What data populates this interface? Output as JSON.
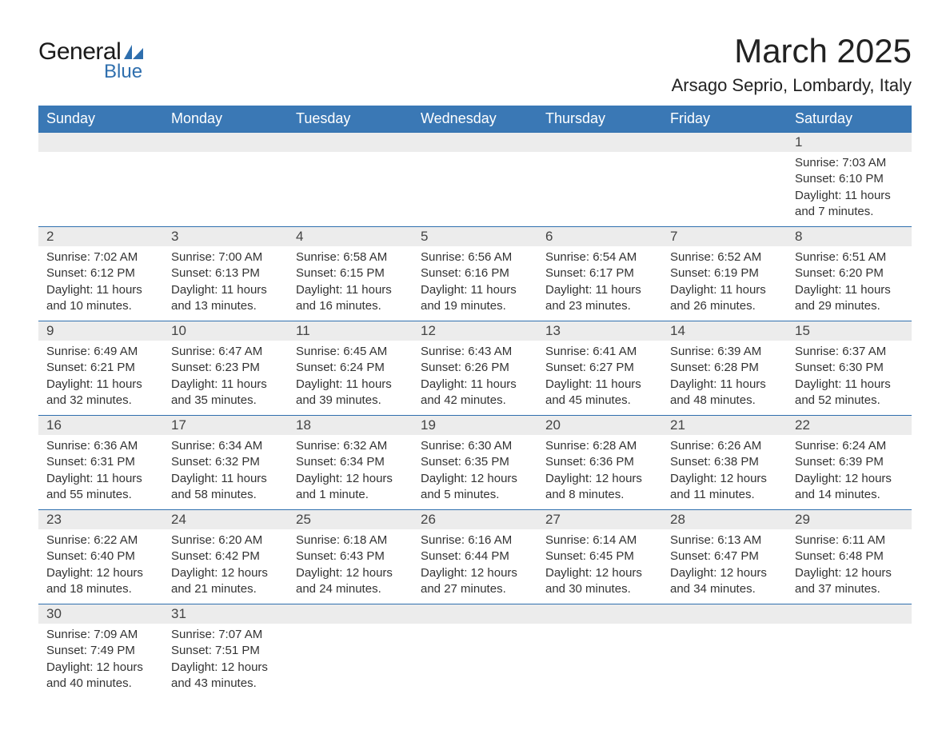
{
  "logo": {
    "text1": "General",
    "text2": "Blue",
    "flag_color": "#2f6fae"
  },
  "title": "March 2025",
  "location": "Arsago Seprio, Lombardy, Italy",
  "colors": {
    "header_bg": "#3a78b5",
    "header_fg": "#ffffff",
    "row_border": "#2f6fae",
    "daynum_bg": "#ececec",
    "text": "#333333"
  },
  "weekdays": [
    "Sunday",
    "Monday",
    "Tuesday",
    "Wednesday",
    "Thursday",
    "Friday",
    "Saturday"
  ],
  "weeks": [
    [
      null,
      null,
      null,
      null,
      null,
      null,
      {
        "d": "1",
        "sr": "Sunrise: 7:03 AM",
        "ss": "Sunset: 6:10 PM",
        "dl1": "Daylight: 11 hours",
        "dl2": "and 7 minutes."
      }
    ],
    [
      {
        "d": "2",
        "sr": "Sunrise: 7:02 AM",
        "ss": "Sunset: 6:12 PM",
        "dl1": "Daylight: 11 hours",
        "dl2": "and 10 minutes."
      },
      {
        "d": "3",
        "sr": "Sunrise: 7:00 AM",
        "ss": "Sunset: 6:13 PM",
        "dl1": "Daylight: 11 hours",
        "dl2": "and 13 minutes."
      },
      {
        "d": "4",
        "sr": "Sunrise: 6:58 AM",
        "ss": "Sunset: 6:15 PM",
        "dl1": "Daylight: 11 hours",
        "dl2": "and 16 minutes."
      },
      {
        "d": "5",
        "sr": "Sunrise: 6:56 AM",
        "ss": "Sunset: 6:16 PM",
        "dl1": "Daylight: 11 hours",
        "dl2": "and 19 minutes."
      },
      {
        "d": "6",
        "sr": "Sunrise: 6:54 AM",
        "ss": "Sunset: 6:17 PM",
        "dl1": "Daylight: 11 hours",
        "dl2": "and 23 minutes."
      },
      {
        "d": "7",
        "sr": "Sunrise: 6:52 AM",
        "ss": "Sunset: 6:19 PM",
        "dl1": "Daylight: 11 hours",
        "dl2": "and 26 minutes."
      },
      {
        "d": "8",
        "sr": "Sunrise: 6:51 AM",
        "ss": "Sunset: 6:20 PM",
        "dl1": "Daylight: 11 hours",
        "dl2": "and 29 minutes."
      }
    ],
    [
      {
        "d": "9",
        "sr": "Sunrise: 6:49 AM",
        "ss": "Sunset: 6:21 PM",
        "dl1": "Daylight: 11 hours",
        "dl2": "and 32 minutes."
      },
      {
        "d": "10",
        "sr": "Sunrise: 6:47 AM",
        "ss": "Sunset: 6:23 PM",
        "dl1": "Daylight: 11 hours",
        "dl2": "and 35 minutes."
      },
      {
        "d": "11",
        "sr": "Sunrise: 6:45 AM",
        "ss": "Sunset: 6:24 PM",
        "dl1": "Daylight: 11 hours",
        "dl2": "and 39 minutes."
      },
      {
        "d": "12",
        "sr": "Sunrise: 6:43 AM",
        "ss": "Sunset: 6:26 PM",
        "dl1": "Daylight: 11 hours",
        "dl2": "and 42 minutes."
      },
      {
        "d": "13",
        "sr": "Sunrise: 6:41 AM",
        "ss": "Sunset: 6:27 PM",
        "dl1": "Daylight: 11 hours",
        "dl2": "and 45 minutes."
      },
      {
        "d": "14",
        "sr": "Sunrise: 6:39 AM",
        "ss": "Sunset: 6:28 PM",
        "dl1": "Daylight: 11 hours",
        "dl2": "and 48 minutes."
      },
      {
        "d": "15",
        "sr": "Sunrise: 6:37 AM",
        "ss": "Sunset: 6:30 PM",
        "dl1": "Daylight: 11 hours",
        "dl2": "and 52 minutes."
      }
    ],
    [
      {
        "d": "16",
        "sr": "Sunrise: 6:36 AM",
        "ss": "Sunset: 6:31 PM",
        "dl1": "Daylight: 11 hours",
        "dl2": "and 55 minutes."
      },
      {
        "d": "17",
        "sr": "Sunrise: 6:34 AM",
        "ss": "Sunset: 6:32 PM",
        "dl1": "Daylight: 11 hours",
        "dl2": "and 58 minutes."
      },
      {
        "d": "18",
        "sr": "Sunrise: 6:32 AM",
        "ss": "Sunset: 6:34 PM",
        "dl1": "Daylight: 12 hours",
        "dl2": "and 1 minute."
      },
      {
        "d": "19",
        "sr": "Sunrise: 6:30 AM",
        "ss": "Sunset: 6:35 PM",
        "dl1": "Daylight: 12 hours",
        "dl2": "and 5 minutes."
      },
      {
        "d": "20",
        "sr": "Sunrise: 6:28 AM",
        "ss": "Sunset: 6:36 PM",
        "dl1": "Daylight: 12 hours",
        "dl2": "and 8 minutes."
      },
      {
        "d": "21",
        "sr": "Sunrise: 6:26 AM",
        "ss": "Sunset: 6:38 PM",
        "dl1": "Daylight: 12 hours",
        "dl2": "and 11 minutes."
      },
      {
        "d": "22",
        "sr": "Sunrise: 6:24 AM",
        "ss": "Sunset: 6:39 PM",
        "dl1": "Daylight: 12 hours",
        "dl2": "and 14 minutes."
      }
    ],
    [
      {
        "d": "23",
        "sr": "Sunrise: 6:22 AM",
        "ss": "Sunset: 6:40 PM",
        "dl1": "Daylight: 12 hours",
        "dl2": "and 18 minutes."
      },
      {
        "d": "24",
        "sr": "Sunrise: 6:20 AM",
        "ss": "Sunset: 6:42 PM",
        "dl1": "Daylight: 12 hours",
        "dl2": "and 21 minutes."
      },
      {
        "d": "25",
        "sr": "Sunrise: 6:18 AM",
        "ss": "Sunset: 6:43 PM",
        "dl1": "Daylight: 12 hours",
        "dl2": "and 24 minutes."
      },
      {
        "d": "26",
        "sr": "Sunrise: 6:16 AM",
        "ss": "Sunset: 6:44 PM",
        "dl1": "Daylight: 12 hours",
        "dl2": "and 27 minutes."
      },
      {
        "d": "27",
        "sr": "Sunrise: 6:14 AM",
        "ss": "Sunset: 6:45 PM",
        "dl1": "Daylight: 12 hours",
        "dl2": "and 30 minutes."
      },
      {
        "d": "28",
        "sr": "Sunrise: 6:13 AM",
        "ss": "Sunset: 6:47 PM",
        "dl1": "Daylight: 12 hours",
        "dl2": "and 34 minutes."
      },
      {
        "d": "29",
        "sr": "Sunrise: 6:11 AM",
        "ss": "Sunset: 6:48 PM",
        "dl1": "Daylight: 12 hours",
        "dl2": "and 37 minutes."
      }
    ],
    [
      {
        "d": "30",
        "sr": "Sunrise: 7:09 AM",
        "ss": "Sunset: 7:49 PM",
        "dl1": "Daylight: 12 hours",
        "dl2": "and 40 minutes."
      },
      {
        "d": "31",
        "sr": "Sunrise: 7:07 AM",
        "ss": "Sunset: 7:51 PM",
        "dl1": "Daylight: 12 hours",
        "dl2": "and 43 minutes."
      },
      null,
      null,
      null,
      null,
      null
    ]
  ]
}
